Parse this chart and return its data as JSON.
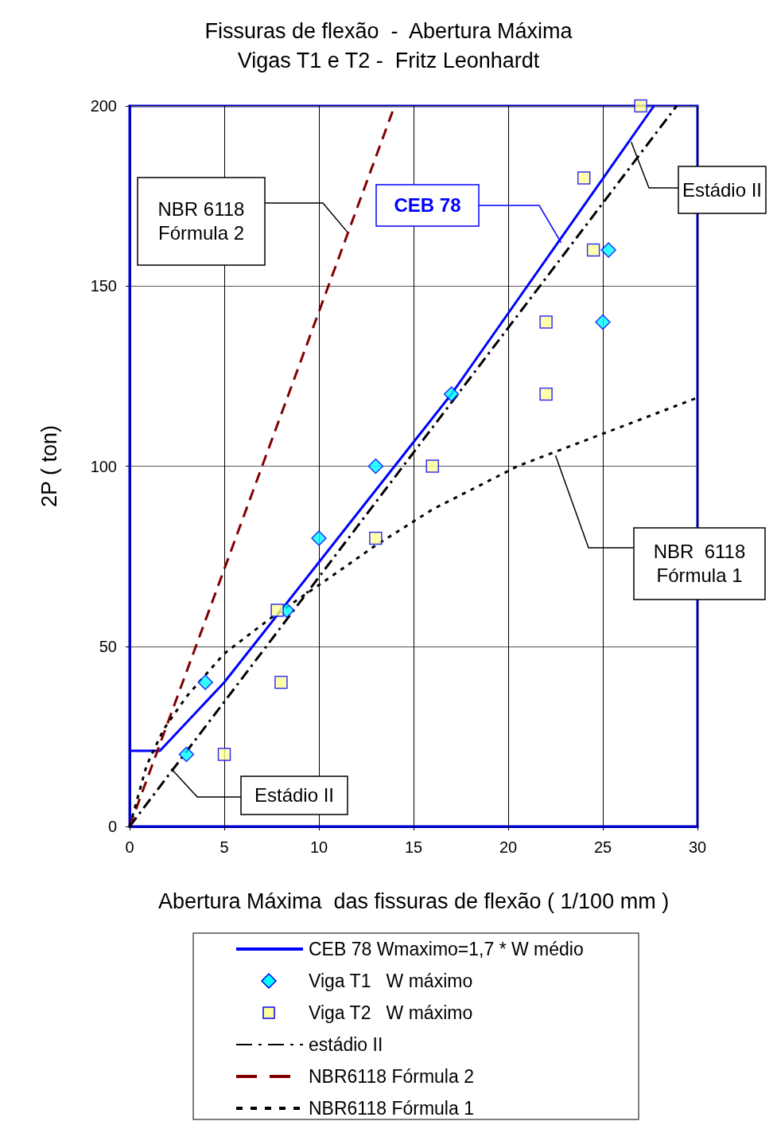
{
  "chart_data": {
    "type": "line",
    "title": "Fissuras de flexão  -  Abertura Máxima",
    "subtitle": "Vigas T1 e T2 -  Fritz Leonhardt",
    "xlabel": "Abertura Máxima  das fissuras de flexão ( 1/100 mm )",
    "ylabel": "2P ( ton)",
    "xlim": [
      0,
      30
    ],
    "xticks": [
      0,
      5,
      10,
      15,
      20,
      25,
      30
    ],
    "ylim": [
      0,
      200
    ],
    "yticks": [
      0,
      50,
      100,
      150,
      200
    ],
    "grid": true,
    "legend": "bottom",
    "series": [
      {
        "name": "CEB 78 Wmaximo=1,7 * W médio",
        "type": "line",
        "color": "#0000ff",
        "marker": "none",
        "line_style": "solid",
        "x": [
          0,
          1.6,
          5,
          17,
          27.7
        ],
        "values": [
          21,
          21,
          40,
          120,
          200
        ]
      },
      {
        "name": "Viga T1   W máximo",
        "type": "scatter",
        "color": "#00ffff",
        "marker": "diamond",
        "x": [
          3,
          4,
          8.3,
          10,
          13,
          17,
          25,
          25.3
        ],
        "values": [
          20,
          40,
          60,
          80,
          100,
          120,
          140,
          160
        ]
      },
      {
        "name": "Viga T2   W máximo",
        "type": "scatter",
        "color": "#ffff99",
        "marker": "square",
        "x": [
          5,
          8,
          7.8,
          13,
          16,
          22,
          22,
          24.5,
          24,
          27
        ],
        "values": [
          20,
          40,
          60,
          80,
          100,
          120,
          140,
          160,
          180,
          200
        ]
      },
      {
        "name": "estádio II",
        "type": "line",
        "color": "#000000",
        "marker": "none",
        "line_style": "dashdot",
        "x": [
          0,
          28.9
        ],
        "values": [
          0,
          200
        ]
      },
      {
        "name": "NBR6118 Fórmula 2",
        "type": "line",
        "color": "#800000",
        "marker": "none",
        "line_style": "dashed",
        "x": [
          0,
          14
        ],
        "values": [
          0,
          200
        ]
      },
      {
        "name": "NBR6118 Fórmula 1",
        "type": "line",
        "color": "#000000",
        "marker": "none",
        "line_style": "dotted",
        "x": [
          0,
          0.9,
          1.8,
          3,
          5,
          7.5,
          10,
          13,
          16,
          20.5,
          25,
          30
        ],
        "values": [
          0,
          17,
          27,
          36,
          48,
          58,
          67,
          78,
          88,
          100,
          109,
          119
        ]
      }
    ],
    "annotations": [
      {
        "text": "NBR 6118\nFórmula 2",
        "x": 11.5,
        "y": 165
      },
      {
        "text": "CEB 78",
        "x": 22.8,
        "y": 162
      },
      {
        "text": "Estádio II",
        "x": 26.5,
        "y": 190
      },
      {
        "text": "NBR  6118\nFórmula 1",
        "x": 22.5,
        "y": 103
      },
      {
        "text": "Estádio II",
        "x": 2.2,
        "y": 16
      }
    ]
  }
}
